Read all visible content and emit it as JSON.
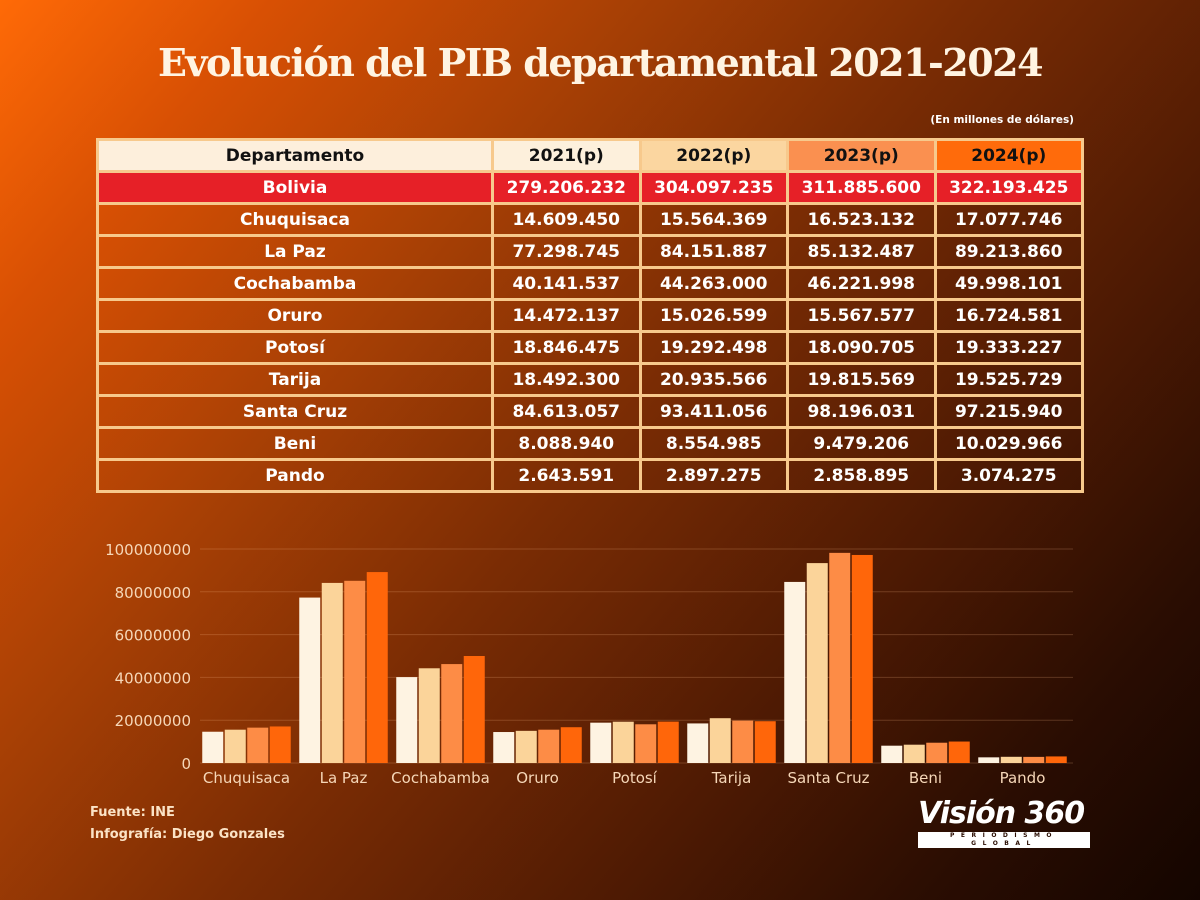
{
  "title": "Evolución del PIB departamental 2021-2024",
  "subtitle": "(En millones de dólares)",
  "table": {
    "headers": [
      "Departamento",
      "2021(p)",
      "2022(p)",
      "2023(p)",
      "2024(p)"
    ],
    "total_row": {
      "name": "Bolivia",
      "values": [
        "279.206.232",
        "304.097.235",
        "311.885.600",
        "322.193.425"
      ]
    },
    "rows": [
      {
        "name": "Chuquisaca",
        "values": [
          "14.609.450",
          "15.564.369",
          "16.523.132",
          "17.077.746"
        ]
      },
      {
        "name": "La Paz",
        "values": [
          "77.298.745",
          "84.151.887",
          "85.132.487",
          "89.213.860"
        ]
      },
      {
        "name": "Cochabamba",
        "values": [
          "40.141.537",
          "44.263.000",
          "46.221.998",
          "49.998.101"
        ]
      },
      {
        "name": "Oruro",
        "values": [
          "14.472.137",
          "15.026.599",
          "15.567.577",
          "16.724.581"
        ]
      },
      {
        "name": "Potosí",
        "values": [
          "18.846.475",
          "19.292.498",
          "18.090.705",
          "19.333.227"
        ]
      },
      {
        "name": "Tarija",
        "values": [
          "18.492.300",
          "20.935.566",
          "19.815.569",
          "19.525.729"
        ]
      },
      {
        "name": "Santa Cruz",
        "values": [
          "84.613.057",
          "93.411.056",
          "98.196.031",
          "97.215.940"
        ]
      },
      {
        "name": "Beni",
        "values": [
          "8.088.940",
          "8.554.985",
          "9.479.206",
          "10.029.966"
        ]
      },
      {
        "name": "Pando",
        "values": [
          "2.643.591",
          "2.897.275",
          "2.858.895",
          "3.074.275"
        ]
      }
    ]
  },
  "chart_data": {
    "type": "bar",
    "title": "",
    "xlabel": "",
    "ylabel": "",
    "categories": [
      "Chuquisaca",
      "La Paz",
      "Cochabamba",
      "Oruro",
      "Potosí",
      "Tarija",
      "Santa Cruz",
      "Beni",
      "Pando"
    ],
    "series": [
      {
        "name": "2021(p)",
        "color": "#fef3e2",
        "values": [
          14609450,
          77298745,
          40141537,
          14472137,
          18846475,
          18492300,
          84613057,
          8088940,
          2643591
        ]
      },
      {
        "name": "2022(p)",
        "color": "#fbd49a",
        "values": [
          15564369,
          84151887,
          44263000,
          15026599,
          19292498,
          20935566,
          93411056,
          8554985,
          2897275
        ]
      },
      {
        "name": "2023(p)",
        "color": "#fd8c46",
        "values": [
          16523132,
          85132487,
          46221998,
          15567577,
          18090705,
          19815569,
          98196031,
          9479206,
          2858895
        ]
      },
      {
        "name": "2024(p)",
        "color": "#ff660a",
        "values": [
          17077746,
          89213860,
          49998101,
          16724581,
          19333227,
          19525729,
          97215940,
          10029966,
          3074275
        ]
      }
    ],
    "yticks": [
      "0",
      "20000000",
      "40000000",
      "60000000",
      "80000000",
      "100000000"
    ],
    "ylim": [
      0,
      100000000
    ],
    "grid": true,
    "legend": "none"
  },
  "footer": {
    "source": "Fuente: INE",
    "credit": "Infografía: Diego Gonzales"
  },
  "logo": {
    "name": "Visión 360",
    "tagline": "PERIODISMO GLOBAL"
  },
  "colors": {
    "total_row": "#e62027",
    "table_border": "#f7c98c",
    "title": "#fff4e2"
  }
}
